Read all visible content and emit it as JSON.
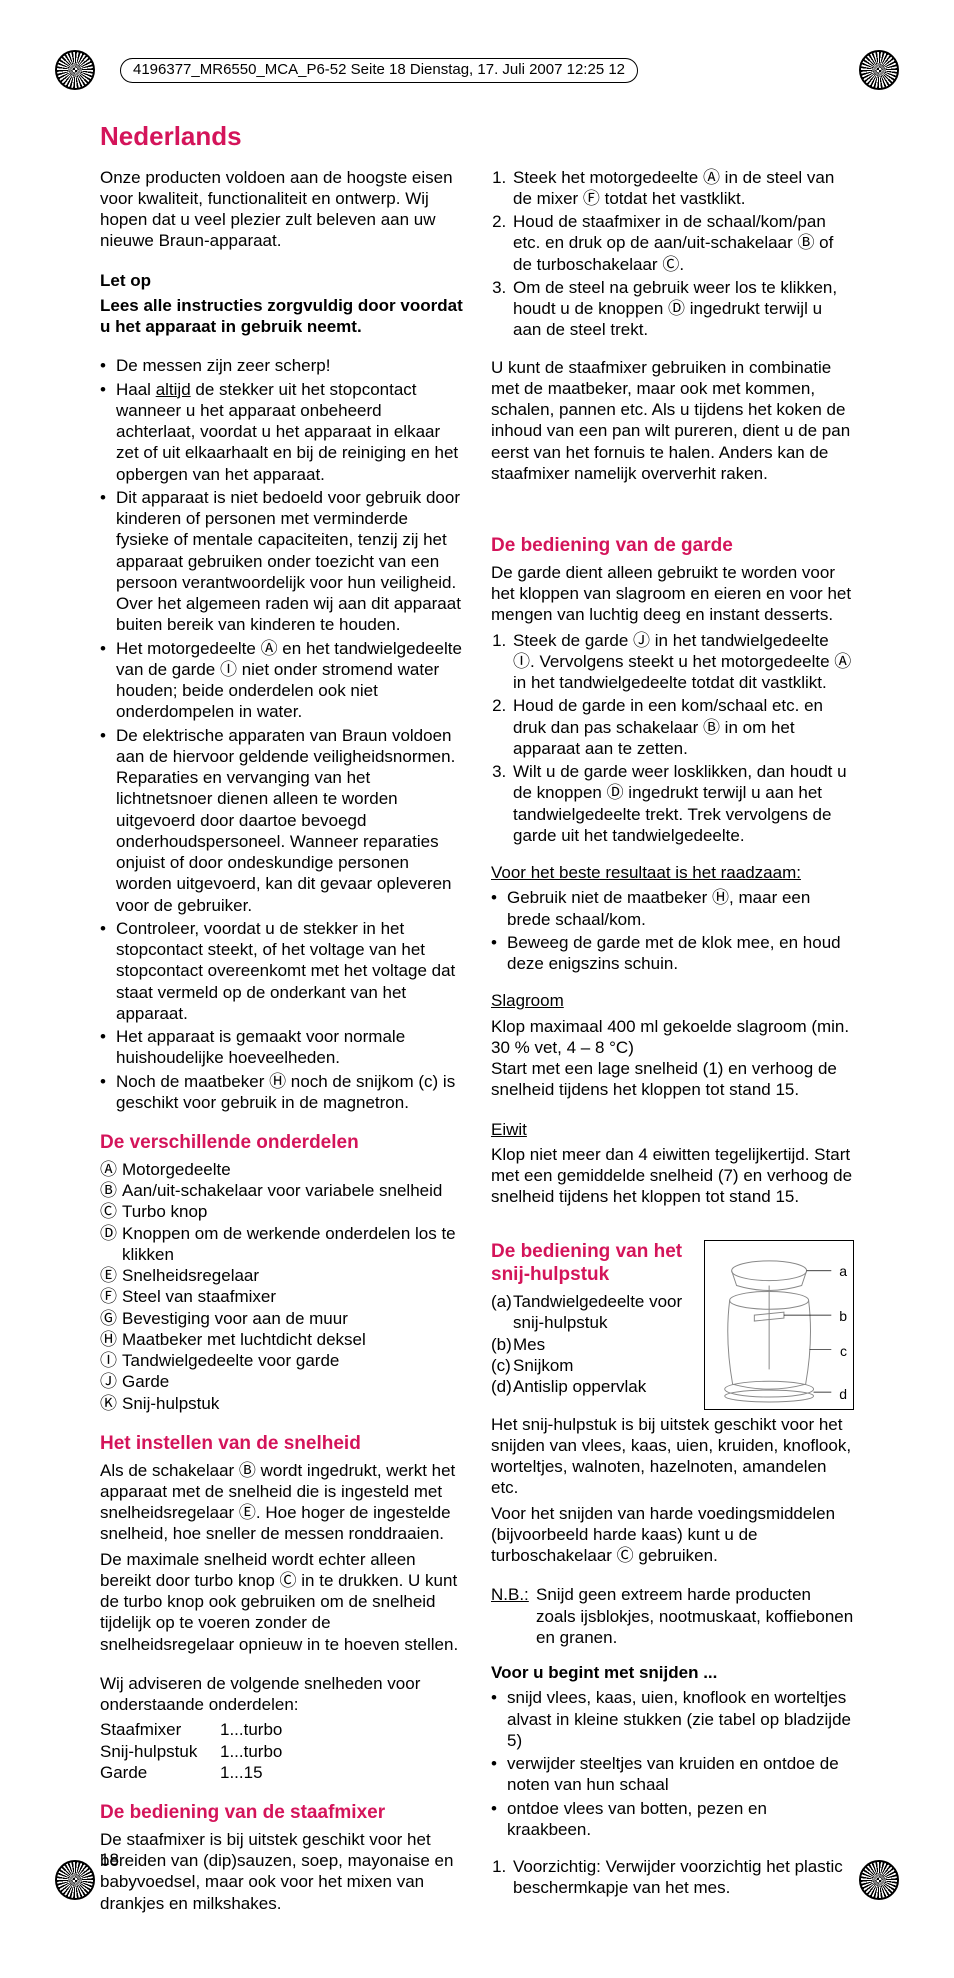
{
  "meta": {
    "header_line": "4196377_MR6550_MCA_P6-52  Seite 18  Dienstag, 17. Juli 2007  12:25 12",
    "page_number": "18"
  },
  "title": "Nederlands",
  "col1": {
    "intro": "Onze producten voldoen aan de hoogste eisen voor kwaliteit, functionaliteit en ontwerp. Wij hopen dat u veel plezier zult beleven aan uw nieuwe Braun-apparaat.",
    "let_op_title": "Let op",
    "let_op_sub": "Lees alle instructies zorgvuldig door voordat u het apparaat in gebruik neemt.",
    "bullets": [
      "De messen zijn zeer scherp!",
      "Haal altijd de stekker uit het stopcontact wanneer u het apparaat onbeheerd achterlaat, voordat u het apparaat in elkaar zet of uit elkaarhaalt en bij de reiniging en het opbergen van het apparaat.",
      "Dit apparaat is niet bedoeld voor gebruik door kinderen of personen met verminderde fysieke of mentale capaciteiten, tenzij zij het apparaat gebruiken onder toezicht van een persoon verantwoordelijk voor hun veiligheid. Over het algemeen raden wij aan dit apparaat buiten bereik van kinderen te houden.",
      "Het motorgedeelte Ⓐ en het tandwielgedeelte van de garde Ⓘ niet onder stromend water houden; beide onderdelen ook niet onderdompelen in water.",
      "De elektrische apparaten van Braun voldoen aan de hiervoor geldende veiligheidsnormen. Reparaties en vervanging van het lichtnetsnoer dienen alleen te worden uitgevoerd door daartoe bevoegd onderhoudspersoneel. Wanneer reparaties onjuist of door ondeskundige personen worden uitgevoerd, kan dit gevaar opleveren voor de gebruiker.",
      "Controleer, voordat u de stekker in het stopcontact steekt, of het voltage van het stopcontact overeenkomt met het voltage dat staat vermeld op de onderkant van het apparaat.",
      "Het apparaat is gemaakt voor normale huishoudelijke hoeveelheden.",
      "Noch de maatbeker Ⓗ noch de snijkom (c) is geschikt voor gebruik in de magnetron."
    ],
    "parts_title": "De verschillende onderdelen",
    "parts": [
      {
        "k": "Ⓐ",
        "v": "Motorgedeelte"
      },
      {
        "k": "Ⓑ",
        "v": "Aan/uit-schakelaar voor variabele snelheid"
      },
      {
        "k": "Ⓒ",
        "v": "Turbo knop"
      },
      {
        "k": "Ⓓ",
        "v": "Knoppen om de werkende onderdelen los te klikken"
      },
      {
        "k": "Ⓔ",
        "v": "Snelheidsregelaar"
      },
      {
        "k": "Ⓕ",
        "v": "Steel van staafmixer"
      },
      {
        "k": "Ⓖ",
        "v": "Bevestiging voor aan de muur"
      },
      {
        "k": "Ⓗ",
        "v": "Maatbeker met luchtdicht deksel"
      },
      {
        "k": "Ⓘ",
        "v": "Tandwielgedeelte voor garde"
      },
      {
        "k": "Ⓙ",
        "v": "Garde"
      },
      {
        "k": "Ⓚ",
        "v": "Snij-hulpstuk"
      }
    ],
    "speed_title": "Het instellen van de snelheid",
    "speed_p1": "Als de schakelaar Ⓑ wordt ingedrukt, werkt het apparaat met de snelheid die is ingesteld met snelheidsregelaar Ⓔ. Hoe hoger de ingestelde snelheid, hoe sneller de messen ronddraaien.",
    "speed_p2": "De maximale snelheid wordt echter alleen bereikt door turbo knop Ⓒ in te drukken. U kunt de turbo knop ook gebruiken om de snelheid tijdelijk op te voeren zonder de snelheidsregelaar opnieuw in te hoeven stellen.",
    "speed_advice": "Wij adviseren de volgende snelheden voor onderstaande onderdelen:",
    "speeds": [
      {
        "name": "Staafmixer",
        "val": "1...turbo"
      },
      {
        "name": "Snij-hulpstuk",
        "val": "1...turbo"
      },
      {
        "name": "Garde",
        "val": "1...15"
      }
    ],
    "staafmixer_title": "De bediening van de staafmixer",
    "staafmixer_p": "De staafmixer is bij uitstek geschikt voor het bereiden van (dip)sauzen, soep, mayonaise en babyvoedsel, maar ook voor het mixen van drankjes en milkshakes."
  },
  "col2": {
    "ol1": [
      "Steek het motorgedeelte Ⓐ in de steel van de mixer Ⓕ totdat het vastklikt.",
      "Houd de staafmixer in de schaal/kom/pan etc. en druk op de aan/uit-schakelaar Ⓑ of de turboschakelaar Ⓒ.",
      "Om de steel na gebruik weer los te klikken, houdt u de knoppen Ⓓ ingedrukt terwijl u aan de steel trekt."
    ],
    "p_after_ol1": "U kunt de staafmixer gebruiken in combinatie met de maatbeker, maar ook met kommen, schalen, pannen etc. Als u tijdens het koken de inhoud van een pan wilt pureren, dient u de pan eerst van het fornuis te halen. Anders kan de staafmixer namelijk oververhit raken.",
    "garde_title": "De bediening van de garde",
    "garde_intro": "De garde dient alleen gebruikt te worden voor het kloppen van slagroom en eieren en voor het mengen van luchtig deeg en instant desserts.",
    "ol2": [
      "Steek de garde Ⓙ in het tandwielgedeelte Ⓘ. Vervolgens steekt u het motorgedeelte Ⓐ in het tandwielgedeelte totdat dit vastklikt.",
      "Houd de garde in een kom/schaal etc. en druk dan pas schakelaar Ⓑ in om het apparaat aan te zetten.",
      "Wilt u de garde weer losklikken, dan houdt u de knoppen Ⓓ ingedrukt terwijl u aan het tandwielgedeelte trekt. Trek vervolgens de garde uit het tandwielgedeelte."
    ],
    "best_result": "Voor het beste resultaat is het raadzaam:",
    "best_bullets": [
      "Gebruik niet de maatbeker Ⓗ, maar een brede schaal/kom.",
      "Beweeg de garde met de klok mee, en houd deze enigszins schuin."
    ],
    "slagroom_h": "Slagroom",
    "slagroom_p": "Klop maximaal 400 ml gekoelde slagroom (min. 30 % vet, 4 – 8 °C)\nStart met een lage snelheid (1) en verhoog de snelheid tijdens het kloppen tot stand 15.",
    "eiwit_h": "Eiwit",
    "eiwit_p": "Klop niet meer dan 4 eiwitten tegelijkertijd. Start met een gemiddelde snelheid (7) en verhoog de snelheid tijdens het kloppen tot stand 15.",
    "snij_title": "De bediening van het snij-hulpstuk",
    "snij_parts": [
      {
        "k": "(a)",
        "v": "Tandwielgedeelte voor snij-hulpstuk"
      },
      {
        "k": "(b)",
        "v": "Mes"
      },
      {
        "k": "(c)",
        "v": "Snijkom"
      },
      {
        "k": "(d)",
        "v": "Antislip oppervlak"
      }
    ],
    "diag_labels": {
      "a": "a",
      "b": "b",
      "c": "c",
      "d": "d"
    },
    "snij_p1": "Het snij-hulpstuk is bij uitstek geschikt voor het snijden van vlees, kaas, uien, kruiden, knoflook, worteltjes, walnoten, hazelnoten, amandelen etc.",
    "snij_p2": "Voor het snijden van harde voedingsmiddelen (bijvoorbeeld harde kaas) kunt u de turboschakelaar Ⓒ gebruiken.",
    "nb_label": "N.B.:",
    "nb_text": "Snijd geen extreem harde producten zoals ijsblokjes, nootmuskaat, koffiebonen en granen.",
    "voor_title": "Voor u begint met snijden ...",
    "voor_bullets": [
      "snijd vlees, kaas, uien, knoflook en worteltjes alvast in kleine stukken (zie tabel op bladzijde 5)",
      "verwijder steeltjes van kruiden en ontdoe de noten van hun schaal",
      "ontdoe vlees van botten, pezen en kraakbeen."
    ],
    "final_ol": [
      "Voorzichtig: Verwijder voorzichtig het plastic beschermkapje van het mes."
    ]
  }
}
